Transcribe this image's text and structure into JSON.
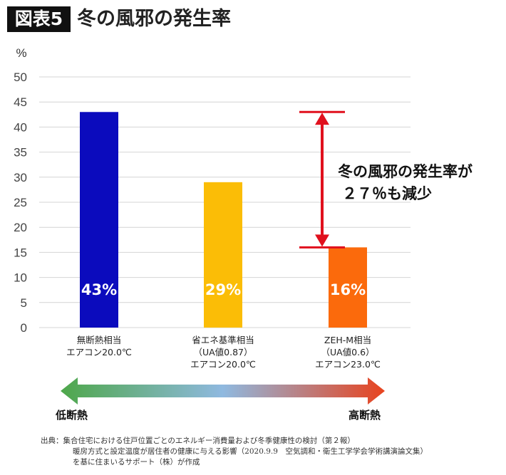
{
  "header": {
    "figure_label": "図表5",
    "title": "冬の風邪の発生率"
  },
  "chart_data": {
    "type": "bar",
    "ylabel": "%",
    "ylim": [
      0,
      50
    ],
    "yticks": [
      0,
      5,
      10,
      15,
      20,
      25,
      30,
      35,
      40,
      45,
      50
    ],
    "grid": true,
    "categories": [
      [
        "無断熱相当",
        "エアコン20.0℃"
      ],
      [
        "省エネ基準相当",
        "（UA値0.87）",
        "エアコン20.0℃"
      ],
      [
        "ZEH-M相当",
        "（UA値0.6）",
        "エアコン23.0℃"
      ]
    ],
    "values": [
      43,
      29,
      16
    ],
    "data_labels": [
      "43%",
      "29%",
      "16%"
    ],
    "colors": [
      "#0b0bbd",
      "#fbbd06",
      "#fb6a0c"
    ]
  },
  "annotation": {
    "line1": "冬の風邪の発生率が",
    "line2": "２７％も減少",
    "arrow_color": "#e0101d"
  },
  "scale": {
    "left_label": "低断熱",
    "right_label": "高断熱",
    "gradient_colors": [
      "#4ea74a",
      "#8fb9e0",
      "#e8431e"
    ]
  },
  "source": {
    "line1": "出典：集合住宅における住戸位置ごとのエネルギー消費量および冬季健康性の検討（第２報）",
    "line2": "暖房方式と設定温度が居住者の健康に与える影響（2020.9.9　空気調和・衛生工学学会学術講演論文集）",
    "line3": "を基に住まいるサポート（株）が作成"
  }
}
